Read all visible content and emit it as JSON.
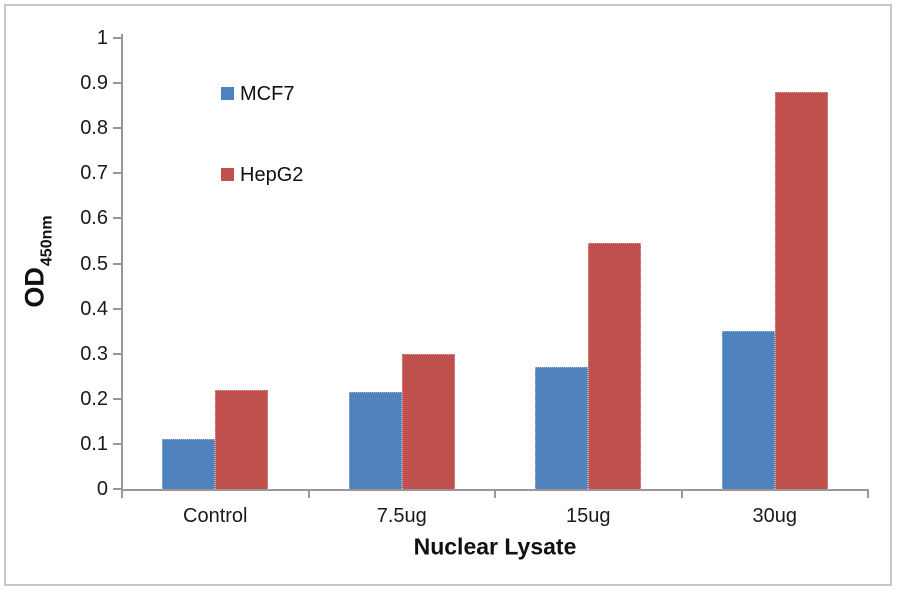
{
  "chart_data": {
    "type": "bar",
    "title": "",
    "xlabel": "Nuclear Lysate",
    "ylabel": "OD450nm",
    "ylabel_main": "OD",
    "ylabel_sub": "450nm",
    "categories": [
      "Control",
      "7.5ug",
      "15ug",
      "30ug"
    ],
    "series": [
      {
        "name": "MCF7",
        "color": "#4F81BD",
        "values": [
          0.11,
          0.215,
          0.27,
          0.35
        ]
      },
      {
        "name": "HepG2",
        "color": "#C0504D",
        "values": [
          0.22,
          0.3,
          0.545,
          0.88
        ]
      }
    ],
    "ylim": [
      0,
      1
    ],
    "yticks": [
      0,
      0.1,
      0.2,
      0.3,
      0.4,
      0.5,
      0.6,
      0.7,
      0.8,
      0.9,
      1
    ],
    "ytick_labels": [
      "0",
      "0.1",
      "0.2",
      "0.3",
      "0.4",
      "0.5",
      "0.6",
      "0.7",
      "0.8",
      "0.9",
      "1"
    ],
    "grid": false,
    "legend_position": "upper-left-inside",
    "axis_color": "#989898",
    "frame_color": "#c6c6c6"
  }
}
